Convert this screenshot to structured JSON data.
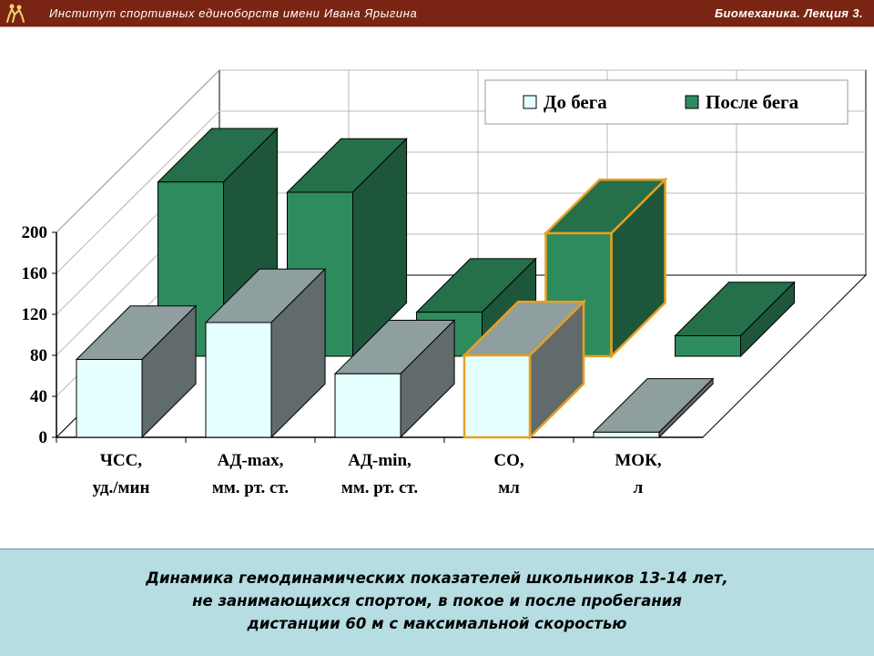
{
  "header": {
    "institute": "Институт спортивных единоборств имени Ивана Ярыгина",
    "lecture": "Биомеханика. Лекция 3.",
    "logo_icon": "wrestlers-logo-icon",
    "background_color": "#7a2514"
  },
  "chart_data": {
    "type": "bar",
    "subtype": "3d-clustered-column",
    "categories": [
      [
        "ЧСС,",
        "уд./мин"
      ],
      [
        "АД-max,",
        "мм. рт. ст."
      ],
      [
        "АД-min,",
        "мм. рт. ст."
      ],
      [
        "СО,",
        "мл"
      ],
      [
        "МОК,",
        "л"
      ]
    ],
    "series": [
      {
        "name": "До бега",
        "values": [
          76,
          112,
          62,
          80,
          5
        ],
        "color": "#e6ffff"
      },
      {
        "name": "После бега",
        "values": [
          170,
          160,
          43,
          120,
          20
        ],
        "color": "#2e8b5e"
      }
    ],
    "highlighted_category_index": 3,
    "highlight_color": "#e8a020",
    "yticks": [
      0,
      40,
      80,
      120,
      160,
      200
    ],
    "ylim": [
      0,
      200
    ],
    "grid": true,
    "legend_position": "top-right"
  },
  "caption": {
    "lines": [
      "Динамика гемодинамических показателей школьников 13-14 лет,",
      "не занимающихся спортом, в покое и после пробегания",
      "дистанции 60 м с максимальной скоростью"
    ]
  }
}
